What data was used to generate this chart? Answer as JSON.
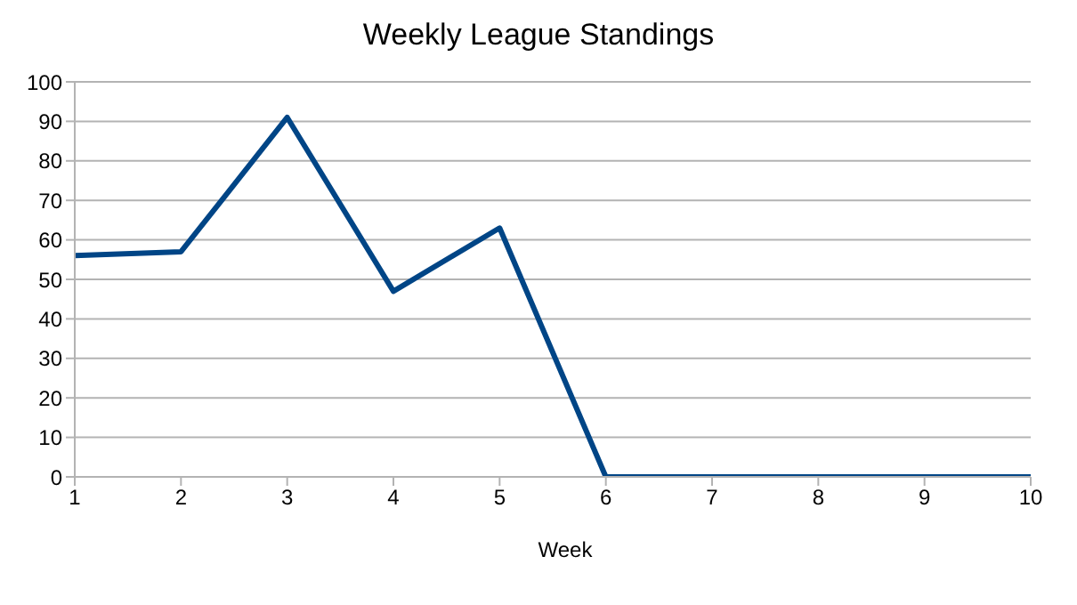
{
  "chart_data": {
    "type": "line",
    "title": "Weekly League Standings",
    "xlabel": "Week",
    "x": [
      1,
      2,
      3,
      4,
      5,
      6,
      7,
      8,
      9,
      10
    ],
    "series": [
      {
        "color": "#004586",
        "values": [
          56,
          57,
          91,
          47,
          63,
          0,
          0,
          0,
          0,
          0
        ]
      }
    ],
    "xlim": [
      1,
      10
    ],
    "xticks": [
      1,
      2,
      3,
      4,
      5,
      6,
      7,
      8,
      9,
      10
    ],
    "ylim": [
      0,
      100
    ],
    "yticks": [
      0,
      10,
      20,
      30,
      40,
      50,
      60,
      70,
      80,
      90,
      100
    ],
    "grid": "y",
    "legend": false,
    "marker": "none",
    "line_style": "solid"
  }
}
